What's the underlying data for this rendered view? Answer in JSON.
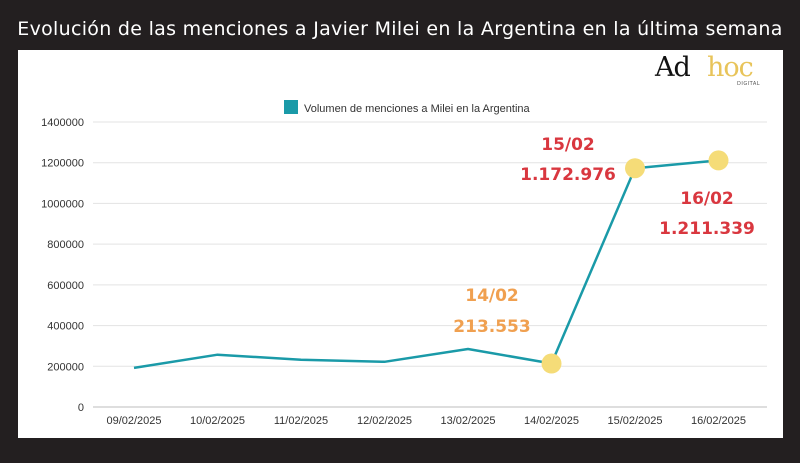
{
  "title": "Evolución de las menciones a Javier Milei en la Argentina en la última semana",
  "logo": {
    "main": "Ad",
    "accent": "hoc",
    "sub": "DIGITAL"
  },
  "colors": {
    "line": "#1a9aa8",
    "marker": "#f5dc78",
    "red": "#d9373f",
    "orange": "#f0a050",
    "background": "#231f20"
  },
  "chart_data": {
    "type": "line",
    "categories": [
      "09/02/2025",
      "10/02/2025",
      "11/02/2025",
      "12/02/2025",
      "13/02/2025",
      "14/02/2025",
      "15/02/2025",
      "16/02/2025"
    ],
    "series": [
      {
        "name": "Volumen de menciones a Milei en la Argentina",
        "values": [
          192000,
          257000,
          232000,
          222000,
          285000,
          213553,
          1172976,
          1211339
        ]
      }
    ],
    "yticks": [
      "0",
      "200000",
      "400000",
      "600000",
      "800000",
      "1000000",
      "1200000",
      "1400000"
    ],
    "ylim": [
      0,
      1400000
    ],
    "grid": true,
    "legend": "top-center",
    "highlighted": [
      5,
      6,
      7
    ],
    "annotations": [
      {
        "date": "14/02",
        "value": "213.553",
        "color": "orange"
      },
      {
        "date": "15/02",
        "value": "1.172.976",
        "color": "red"
      },
      {
        "date": "16/02",
        "value": "1.211.339",
        "color": "red"
      }
    ]
  }
}
